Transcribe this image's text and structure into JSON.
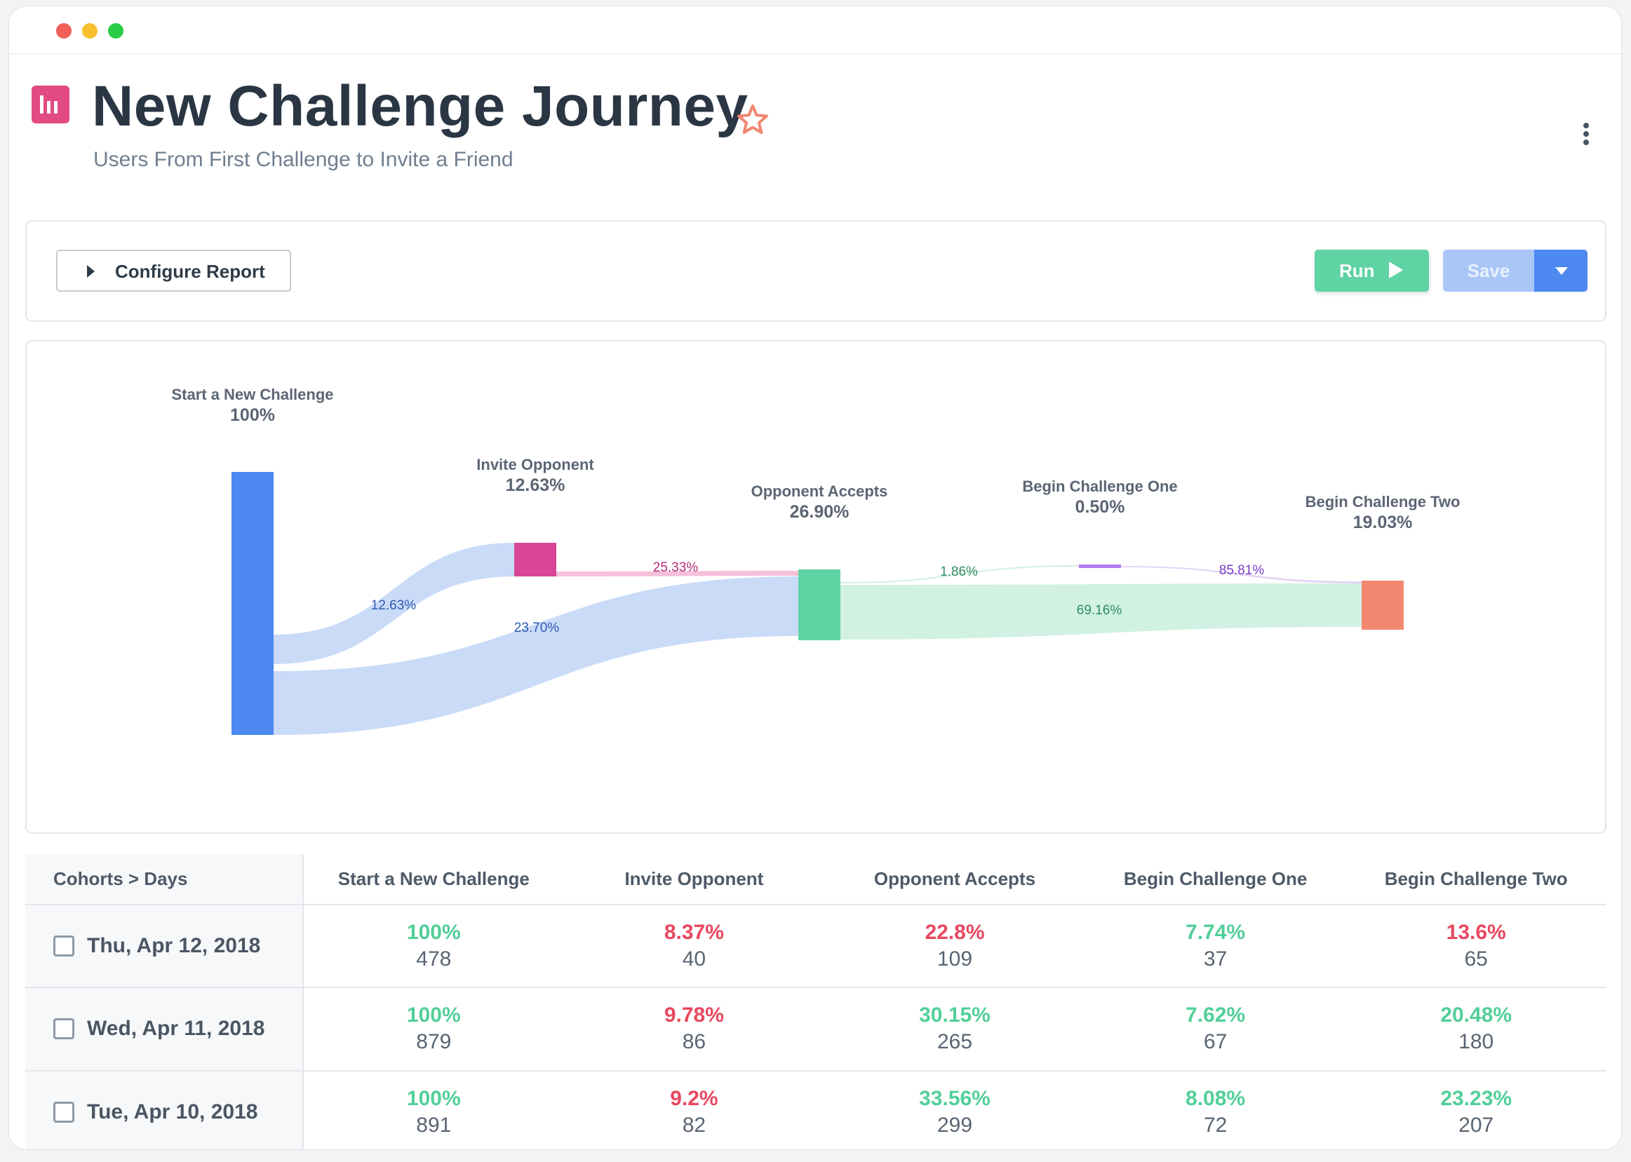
{
  "window": {
    "controls": [
      "close",
      "minimize",
      "maximize"
    ]
  },
  "header": {
    "title": "New Challenge Journey",
    "subtitle": "Users From First Challenge to Invite a Friend",
    "icon": "report-icon",
    "favorite_icon": "star-icon",
    "menu_icon": "kebab-menu-icon"
  },
  "toolbar": {
    "configure_label": "Configure Report",
    "run_label": "Run",
    "save_label": "Save"
  },
  "colors": {
    "accent_blue": "#4d89f0",
    "start_node": "#4d89f0",
    "invite_node": "#d94597",
    "accepts_node": "#5fd3a4",
    "begin_one_node": "#b17cf0",
    "begin_two_node": "#f2876f",
    "positive": "#52cf98",
    "negative": "#e8485f"
  },
  "chart_data": {
    "type": "sankey",
    "nodes": [
      {
        "id": "start",
        "label": "Start a New Challenge",
        "value": "100%"
      },
      {
        "id": "invite",
        "label": "Invite Opponent",
        "value": "12.63%"
      },
      {
        "id": "accepts",
        "label": "Opponent Accepts",
        "value": "26.90%"
      },
      {
        "id": "one",
        "label": "Begin Challenge One",
        "value": "0.50%"
      },
      {
        "id": "two",
        "label": "Begin Challenge Two",
        "value": "19.03%"
      }
    ],
    "links": [
      {
        "source": "start",
        "target": "invite",
        "label": "12.63%"
      },
      {
        "source": "start",
        "target": "accepts",
        "label": "23.70%"
      },
      {
        "source": "invite",
        "target": "accepts",
        "label": "25.33%"
      },
      {
        "source": "accepts",
        "target": "one",
        "label": "1.86%"
      },
      {
        "source": "accepts",
        "target": "two",
        "label": "69.16%"
      },
      {
        "source": "one",
        "target": "two",
        "label": "85.81%"
      }
    ]
  },
  "table": {
    "first_header": "Cohorts > Days",
    "columns": [
      "Start a New Challenge",
      "Invite Opponent",
      "Opponent Accepts",
      "Begin Challenge One",
      "Begin Challenge Two"
    ],
    "rows": [
      {
        "date": "Thu, Apr 12, 2018",
        "cells": [
          {
            "pct": "100%",
            "count": "478",
            "trend": "pos"
          },
          {
            "pct": "8.37%",
            "count": "40",
            "trend": "neg"
          },
          {
            "pct": "22.8%",
            "count": "109",
            "trend": "neg"
          },
          {
            "pct": "7.74%",
            "count": "37",
            "trend": "pos"
          },
          {
            "pct": "13.6%",
            "count": "65",
            "trend": "neg"
          }
        ]
      },
      {
        "date": "Wed, Apr 11, 2018",
        "cells": [
          {
            "pct": "100%",
            "count": "879",
            "trend": "pos"
          },
          {
            "pct": "9.78%",
            "count": "86",
            "trend": "neg"
          },
          {
            "pct": "30.15%",
            "count": "265",
            "trend": "pos"
          },
          {
            "pct": "7.62%",
            "count": "67",
            "trend": "pos"
          },
          {
            "pct": "20.48%",
            "count": "180",
            "trend": "pos"
          }
        ]
      },
      {
        "date": "Tue, Apr 10, 2018",
        "cells": [
          {
            "pct": "100%",
            "count": "891",
            "trend": "pos"
          },
          {
            "pct": "9.2%",
            "count": "82",
            "trend": "neg"
          },
          {
            "pct": "33.56%",
            "count": "299",
            "trend": "pos"
          },
          {
            "pct": "8.08%",
            "count": "72",
            "trend": "pos"
          },
          {
            "pct": "23.23%",
            "count": "207",
            "trend": "pos"
          }
        ]
      }
    ]
  }
}
